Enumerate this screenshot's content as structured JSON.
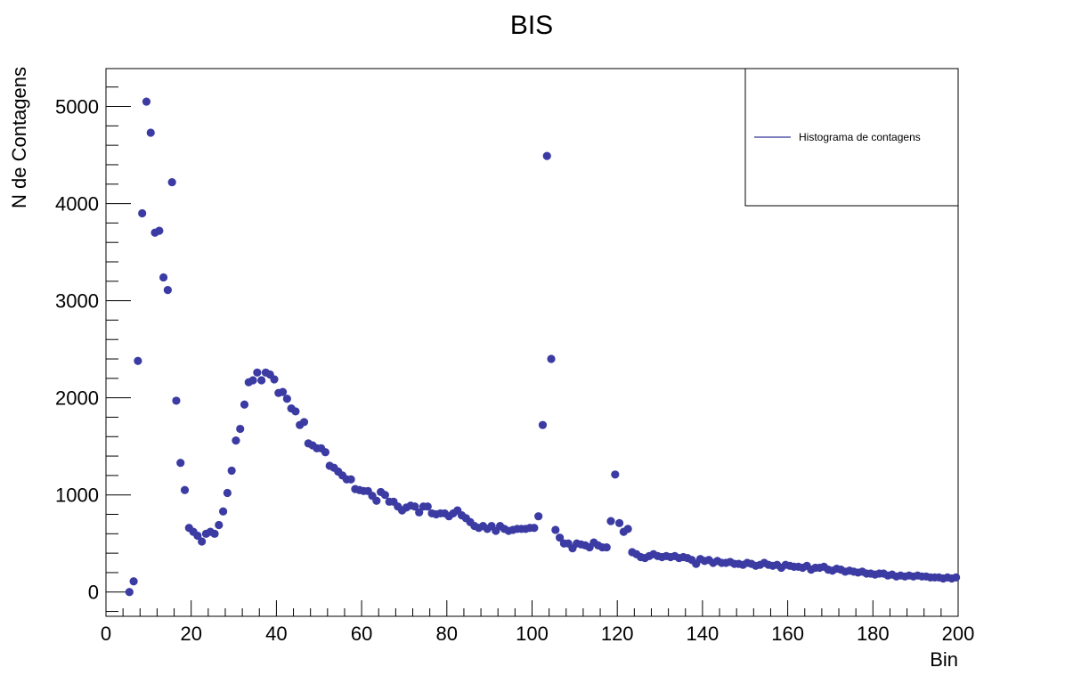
{
  "chart_data": {
    "type": "scatter",
    "title": "BIS",
    "x_label": "Bin",
    "y_label": "N de Contagens",
    "legend": "top-right",
    "x": [
      5.5,
      6.5,
      7.5,
      8.5,
      9.5,
      10.5,
      11.5,
      12.5,
      13.5,
      14.5,
      15.5,
      16.5,
      17.5,
      18.5,
      19.5,
      20.5,
      21.5,
      22.5,
      23.5,
      24.5,
      25.5,
      26.5,
      27.5,
      28.5,
      29.5,
      30.5,
      31.5,
      32.5,
      33.5,
      34.5,
      35.5,
      36.5,
      37.5,
      38.5,
      39.5,
      40.5,
      41.5,
      42.5,
      43.5,
      44.5,
      45.5,
      46.5,
      47.5,
      48.5,
      49.5,
      50.5,
      51.5,
      52.5,
      53.5,
      54.5,
      55.5,
      56.5,
      57.5,
      58.5,
      59.5,
      60.5,
      61.5,
      62.5,
      63.5,
      64.5,
      65.5,
      66.5,
      67.5,
      68.5,
      69.5,
      70.5,
      71.5,
      72.5,
      73.5,
      74.5,
      75.5,
      76.5,
      77.5,
      78.5,
      79.5,
      80.5,
      81.5,
      82.5,
      83.5,
      84.5,
      85.5,
      86.5,
      87.5,
      88.5,
      89.5,
      90.5,
      91.5,
      92.5,
      93.5,
      94.5,
      95.5,
      96.5,
      97.5,
      98.5,
      99.5,
      100.5,
      101.5,
      102.5,
      103.5,
      104.5,
      105.5,
      106.5,
      107.5,
      108.5,
      109.5,
      110.5,
      111.5,
      112.5,
      113.5,
      114.5,
      115.5,
      116.5,
      117.5,
      118.5,
      119.5,
      120.5,
      121.5,
      122.5,
      123.5,
      124.5,
      125.5,
      126.5,
      127.5,
      128.5,
      129.5,
      130.5,
      131.5,
      132.5,
      133.5,
      134.5,
      135.5,
      136.5,
      137.5,
      138.5,
      139.5,
      140.5,
      141.5,
      142.5,
      143.5,
      144.5,
      145.5,
      146.5,
      147.5,
      148.5,
      149.5,
      150.5,
      151.5,
      152.5,
      153.5,
      154.5,
      155.5,
      156.5,
      157.5,
      158.5,
      159.5,
      160.5,
      161.5,
      162.5,
      163.5,
      164.5,
      165.5,
      166.5,
      167.5,
      168.5,
      169.5,
      170.5,
      171.5,
      172.5,
      173.5,
      174.5,
      175.5,
      176.5,
      177.5,
      178.5,
      179.5,
      180.5,
      181.5,
      182.5,
      183.5,
      184.5,
      185.5,
      186.5,
      187.5,
      188.5,
      189.5,
      190.5,
      191.5,
      192.5,
      193.5,
      194.5,
      195.5,
      196.5,
      197.5,
      198.5,
      199.5
    ],
    "series": [
      {
        "name": "Histograma de contagens",
        "color": "#3b3ba3",
        "line_color": "#000080",
        "values": [
          0,
          110,
          2380,
          3900,
          5050,
          4730,
          3700,
          3720,
          3240,
          3110,
          4220,
          1970,
          1330,
          1050,
          660,
          620,
          580,
          520,
          600,
          620,
          600,
          690,
          830,
          1020,
          1250,
          1560,
          1680,
          1930,
          2160,
          2180,
          2260,
          2180,
          2260,
          2240,
          2190,
          2050,
          2060,
          1990,
          1890,
          1860,
          1720,
          1750,
          1530,
          1510,
          1480,
          1480,
          1440,
          1300,
          1280,
          1240,
          1200,
          1160,
          1160,
          1060,
          1050,
          1040,
          1040,
          990,
          940,
          1030,
          1000,
          930,
          930,
          880,
          840,
          870,
          890,
          880,
          820,
          880,
          880,
          810,
          800,
          810,
          810,
          780,
          810,
          840,
          790,
          760,
          720,
          680,
          660,
          680,
          650,
          680,
          630,
          680,
          650,
          630,
          640,
          650,
          650,
          650,
          660,
          660,
          780,
          1720,
          4490,
          2400,
          640,
          560,
          500,
          500,
          450,
          500,
          490,
          480,
          460,
          510,
          480,
          460,
          460,
          730,
          1210,
          710,
          620,
          650,
          410,
          390,
          360,
          350,
          370,
          390,
          370,
          360,
          370,
          360,
          370,
          350,
          360,
          350,
          330,
          290,
          340,
          320,
          330,
          300,
          320,
          300,
          300,
          310,
          290,
          290,
          280,
          300,
          290,
          270,
          280,
          300,
          280,
          270,
          280,
          250,
          280,
          270,
          260,
          260,
          250,
          270,
          230,
          250,
          250,
          260,
          230,
          220,
          240,
          230,
          210,
          220,
          210,
          200,
          210,
          190,
          190,
          180,
          190,
          190,
          170,
          180,
          160,
          170,
          160,
          170,
          160,
          170,
          160,
          160,
          150,
          150,
          150,
          140,
          150,
          140,
          150
        ]
      }
    ],
    "xlim": [
      0,
      200
    ],
    "xticks": [
      0,
      20,
      40,
      60,
      80,
      100,
      120,
      140,
      160,
      180,
      200
    ],
    "ylim": [
      -250,
      5390
    ],
    "yticks": [
      0,
      1000,
      2000,
      3000,
      4000,
      5000
    ]
  }
}
